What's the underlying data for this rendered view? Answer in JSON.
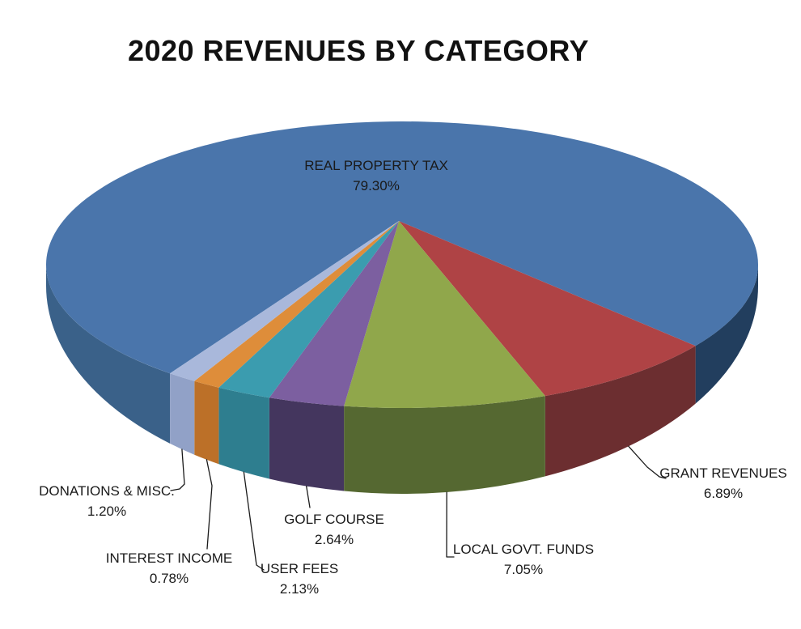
{
  "title": "2020 REVENUES BY CATEGORY",
  "chart_data": {
    "type": "pie",
    "style": "3d-perspective",
    "title": "2020 REVENUES BY CATEGORY",
    "unit": "percent",
    "total": 99.99,
    "legend": "none",
    "labels": "outside-callouts-with-leader-lines",
    "text_color": "#1A1A1A",
    "background": "#FFFFFF",
    "leader_line_color": "#1A1A1A",
    "slices": [
      {
        "id": "real-property-tax",
        "label": "REAL PROPERTY TAX",
        "pct_label": "79.30%",
        "value": 79.3,
        "color_top": "#4A75AB",
        "color_side_left": "#3A6189",
        "color_side_right": "#223E5E"
      },
      {
        "id": "grant-revenues",
        "label": "GRANT REVENUES",
        "pct_label": "6.89%",
        "value": 6.89,
        "color_top": "#AF4345",
        "color_side": "#6C2E30"
      },
      {
        "id": "local-govt-funds",
        "label": "LOCAL GOVT. FUNDS",
        "pct_label": "7.05%",
        "value": 7.05,
        "color_top": "#90A74B",
        "color_side": "#556831"
      },
      {
        "id": "golf-course",
        "label": "GOLF COURSE",
        "pct_label": "2.64%",
        "value": 2.64,
        "color_top": "#7C5FA0",
        "color_side": "#44365E"
      },
      {
        "id": "user-fees",
        "label": "USER FEES",
        "pct_label": "2.13%",
        "value": 2.13,
        "color_top": "#3B9CAF",
        "color_side": "#2E7E8F"
      },
      {
        "id": "interest-income",
        "label": "INTEREST INCOME",
        "pct_label": "0.78%",
        "value": 0.78,
        "color_top": "#DE8D3A",
        "color_side": "#BC7028"
      },
      {
        "id": "donations-misc",
        "label": "DONATIONS & MISC.",
        "pct_label": "1.20%",
        "value": 1.2,
        "color_top": "#A9B8DB",
        "color_side": "#91A1C7"
      }
    ]
  }
}
